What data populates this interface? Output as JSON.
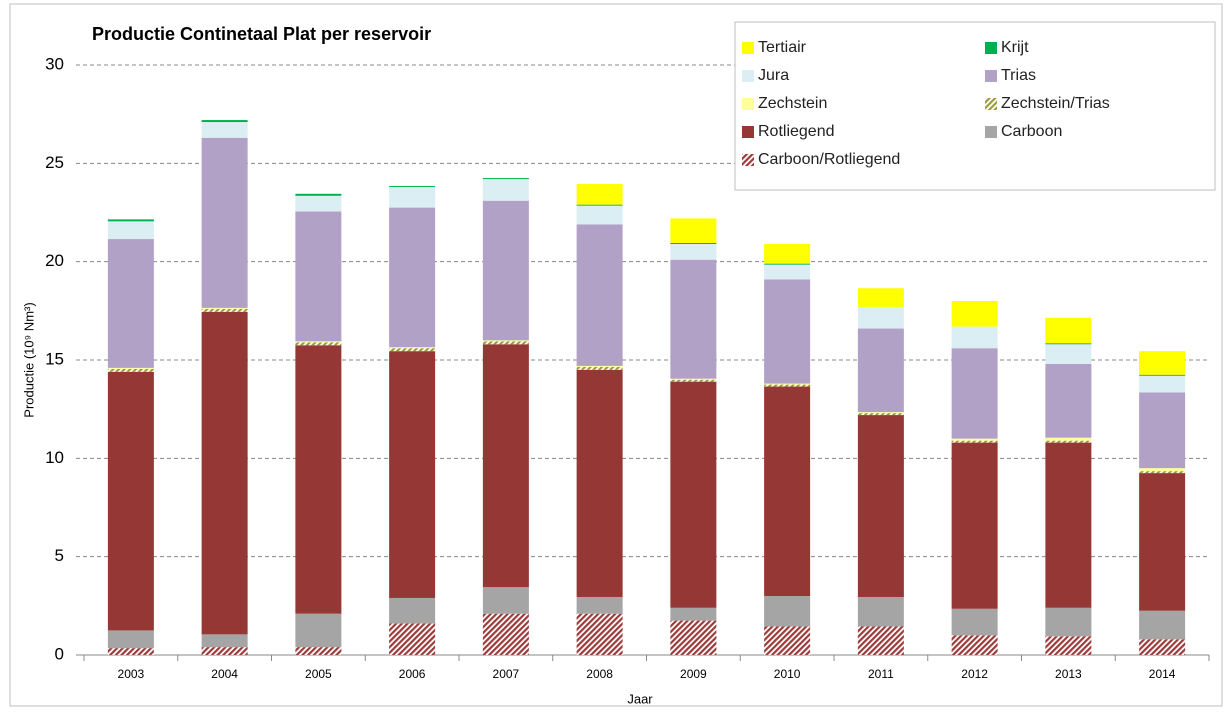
{
  "chart_data": {
    "type": "stacked_bar",
    "title": "Productie Continetaal Plat per reservoir",
    "x_label": "Jaar",
    "y_label": "Productie (10⁹ Nm³)",
    "categories": [
      "2003",
      "2004",
      "2005",
      "2006",
      "2007",
      "2008",
      "2009",
      "2010",
      "2011",
      "2012",
      "2013",
      "2014"
    ],
    "ylim": [
      0,
      30
    ],
    "yticks": [
      0,
      5,
      10,
      15,
      20,
      25,
      30
    ],
    "grid": true,
    "legend": "top-right",
    "series": [
      {
        "name": "Carboon/Rotliegend",
        "color": "#9b3b3b",
        "pattern": "hatch",
        "values": [
          0.35,
          0.4,
          0.4,
          1.6,
          2.1,
          2.1,
          1.75,
          1.45,
          1.45,
          1.0,
          0.95,
          0.8
        ]
      },
      {
        "name": "Carboon",
        "color": "#a5a5a5",
        "values": [
          0.9,
          0.65,
          1.7,
          1.3,
          1.35,
          0.85,
          0.65,
          1.55,
          1.5,
          1.35,
          1.45,
          1.45
        ]
      },
      {
        "name": "Rotliegend",
        "color": "#953735",
        "values": [
          13.15,
          16.4,
          13.65,
          12.55,
          12.35,
          11.55,
          11.5,
          10.65,
          9.25,
          8.45,
          8.4,
          7.0
        ]
      },
      {
        "name": "Zechstein/Trias",
        "color": "#9c9c3c",
        "pattern": "hatch",
        "values": [
          0.15,
          0.15,
          0.15,
          0.15,
          0.15,
          0.15,
          0.1,
          0.1,
          0.1,
          0.1,
          0.1,
          0.1
        ]
      },
      {
        "name": "Zechstein",
        "color": "#ffff99",
        "values": [
          0.05,
          0.05,
          0.05,
          0.05,
          0.05,
          0.05,
          0.05,
          0.05,
          0.05,
          0.1,
          0.15,
          0.15
        ]
      },
      {
        "name": "Trias",
        "color": "#b2a1c7",
        "values": [
          6.55,
          8.65,
          6.6,
          7.1,
          7.1,
          7.2,
          6.05,
          5.3,
          4.25,
          4.6,
          3.75,
          3.85
        ]
      },
      {
        "name": "Jura",
        "color": "#dbeef4",
        "values": [
          0.9,
          0.8,
          0.8,
          1.05,
          1.1,
          0.95,
          0.8,
          0.75,
          1.1,
          1.1,
          1.0,
          0.85
        ]
      },
      {
        "name": "Krijt",
        "color": "#00b050",
        "values": [
          0.1,
          0.1,
          0.1,
          0.05,
          0.05,
          0.05,
          0.05,
          0.05,
          0,
          0,
          0.05,
          0.05
        ]
      },
      {
        "name": "Tertiair",
        "color": "#ffff00",
        "values": [
          0,
          0,
          0,
          0,
          0,
          1.05,
          1.25,
          1.0,
          0.95,
          1.3,
          1.3,
          1.2
        ]
      }
    ]
  }
}
